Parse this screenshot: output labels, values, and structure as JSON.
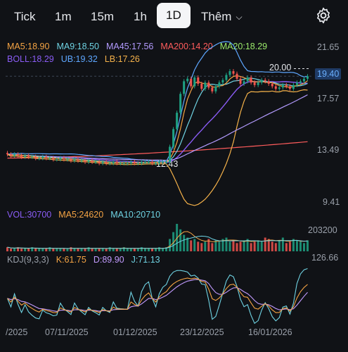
{
  "tabs": {
    "tick": "Tick",
    "m1": "1m",
    "m15": "15m",
    "h1": "1h",
    "d1": "1D",
    "more": "Thêm"
  },
  "colors": {
    "up": "#1ea184",
    "down": "#f2554f",
    "ma5": "#f5a444",
    "ma9": "#6fd3e3",
    "ma45": "#b39bff",
    "ma200": "#ff5c5c",
    "ma20": "#9bea6a",
    "boll": "#8a5cf5",
    "ub": "#5ea7ff",
    "lb": "#f5b24a",
    "kdj_k": "#f5a444",
    "kdj_d": "#c29bff",
    "kdj_j": "#6fd3e3"
  },
  "indicators": {
    "ma5": "MA5:18.90",
    "ma9": "MA9:18.50",
    "ma45": "MA45:17.56",
    "ma200": "MA200:14.20",
    "ma20": "MA20:18.29",
    "boll": "BOLL:18.29",
    "ub": "UB:19.32",
    "lb": "LB:17.26"
  },
  "volume": {
    "vol": "VOL:30700",
    "ma5": "MA5:24620",
    "ma10": "MA10:20710",
    "axis_top": "203200",
    "axis_bottom": "126.66"
  },
  "kdj": {
    "label": "KDJ(9,3,3)",
    "k": "K:61.75",
    "d": "D:89.90",
    "j": "J:71.13"
  },
  "price_axis": [
    "21.65",
    "19.40",
    "17.57",
    "13.49",
    "9.41"
  ],
  "current_price": "19.40",
  "annotations": {
    "high": "20.00",
    "low": "12.43"
  },
  "dates": [
    "/2025",
    "07/11/2025",
    "01/12/2025",
    "23/12/2025",
    "16/01/2026"
  ],
  "chart_data": {
    "type": "line",
    "price_range": [
      9.41,
      21.65
    ],
    "current_price": 19.4,
    "session_high": 20.0,
    "session_low": 12.43,
    "indicators": {
      "MA5": 18.9,
      "MA9": 18.5,
      "MA45": 17.56,
      "MA200": 14.2,
      "MA20": 18.29,
      "BOLL": 18.29,
      "UB": 19.32,
      "LB": 17.26
    },
    "volume": {
      "VOL": 30700,
      "MA5": 24620,
      "MA10": 20710,
      "axis_max": 203200
    },
    "kdj": {
      "K": 61.75,
      "D": 89.9,
      "J": 71.13
    },
    "x_labels": [
      "/2025",
      "07/11/2025",
      "01/12/2025",
      "23/12/2025",
      "16/01/2026"
    ],
    "candles_close": [
      13.2,
      13.1,
      13.2,
      13.1,
      13.0,
      13.1,
      13.0,
      13.0,
      12.9,
      12.9,
      13.0,
      12.9,
      12.9,
      12.8,
      12.8,
      12.9,
      12.8,
      12.8,
      12.7,
      12.8,
      12.7,
      12.7,
      12.6,
      12.7,
      12.6,
      12.6,
      12.5,
      12.6,
      12.5,
      12.5,
      12.6,
      12.5,
      12.5,
      12.5,
      12.5,
      12.6,
      12.5,
      12.5,
      12.6,
      12.6,
      12.6,
      12.5,
      12.5,
      12.6,
      12.6,
      12.6,
      13.8,
      15.2,
      16.5,
      18.0,
      19.0,
      19.2,
      18.6,
      19.3,
      18.8,
      18.4,
      18.9,
      18.5,
      18.2,
      18.6,
      18.9,
      19.1,
      19.5,
      19.8,
      19.6,
      19.2,
      18.8,
      19.0,
      19.3,
      18.9,
      18.7,
      18.9,
      19.1,
      19.0,
      18.8,
      18.6,
      18.4,
      18.5,
      18.7,
      18.6,
      18.4,
      18.7,
      18.9,
      19.0,
      19.2,
      19.4
    ],
    "candles_open": [
      13.3,
      13.2,
      13.1,
      13.2,
      13.1,
      13.0,
      13.1,
      13.0,
      13.0,
      12.9,
      12.9,
      13.0,
      12.9,
      12.9,
      12.8,
      12.8,
      12.9,
      12.8,
      12.8,
      12.7,
      12.8,
      12.7,
      12.7,
      12.6,
      12.7,
      12.6,
      12.6,
      12.5,
      12.6,
      12.5,
      12.5,
      12.6,
      12.5,
      12.5,
      12.5,
      12.5,
      12.6,
      12.5,
      12.5,
      12.6,
      12.6,
      12.6,
      12.5,
      12.5,
      12.6,
      12.6,
      12.6,
      13.8,
      15.2,
      16.5,
      18.0,
      19.0,
      19.2,
      18.6,
      19.3,
      18.8,
      18.4,
      18.9,
      18.5,
      18.2,
      18.6,
      18.9,
      19.1,
      19.5,
      19.8,
      19.6,
      19.2,
      18.8,
      19.0,
      19.3,
      18.9,
      18.7,
      18.9,
      19.1,
      19.0,
      18.8,
      18.6,
      18.4,
      18.5,
      18.7,
      18.6,
      18.4,
      18.7,
      18.9,
      19.0,
      19.2
    ],
    "volumes": [
      3,
      2,
      2,
      3,
      2,
      2,
      2,
      3,
      2,
      2,
      2,
      2,
      3,
      2,
      2,
      2,
      2,
      2,
      3,
      2,
      2,
      2,
      2,
      3,
      2,
      2,
      2,
      2,
      2,
      3,
      2,
      2,
      2,
      3,
      2,
      2,
      2,
      2,
      3,
      2,
      2,
      2,
      2,
      3,
      2,
      3,
      9,
      14,
      20,
      16,
      12,
      10,
      8,
      9,
      7,
      6,
      7,
      9,
      6,
      8,
      7,
      9,
      10,
      7,
      8,
      6,
      7,
      8,
      9,
      6,
      7,
      8,
      7,
      10,
      9,
      7,
      6,
      8,
      10,
      6,
      7,
      9,
      8,
      7,
      6,
      8
    ]
  }
}
